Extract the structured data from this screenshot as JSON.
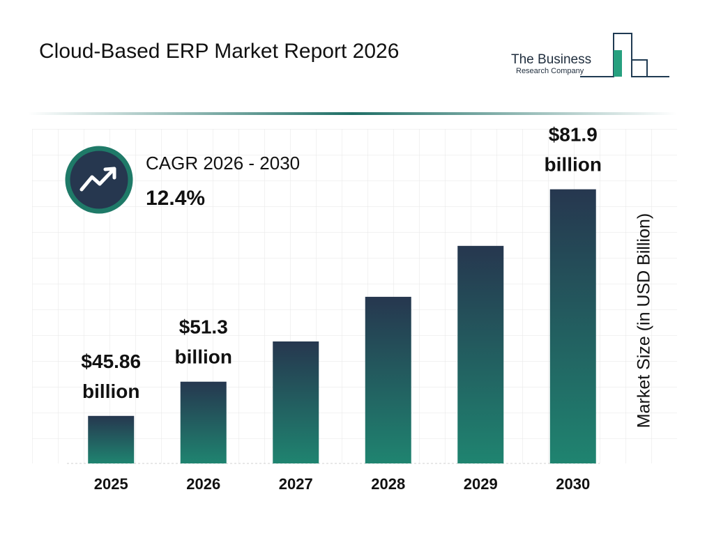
{
  "chart_data": {
    "type": "bar",
    "title": "Cloud-Based ERP Market Report 2026",
    "logo": [
      "The Business",
      "Research Company"
    ],
    "cagr_label": "CAGR 2026 - 2030",
    "cagr_value": "12.4%",
    "y_label": "Market Size (in USD Billion)",
    "categories": [
      "2025",
      "2026",
      "2027",
      "2028",
      "2029",
      "2030"
    ],
    "values": [
      45.86,
      51.3,
      57.7,
      64.8,
      72.9,
      81.9
    ],
    "value_labels": [
      "$45.86 billion",
      "$51.3 billion",
      null,
      null,
      null,
      "$81.9 billion"
    ],
    "gradient": [
      "#26374f",
      "#1f8470"
    ],
    "ylim": [
      38.3,
      91.5
    ]
  }
}
